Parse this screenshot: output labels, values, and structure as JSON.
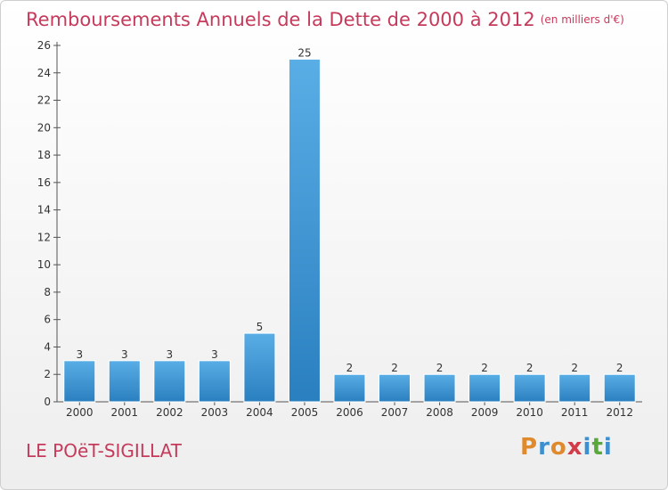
{
  "header": {
    "title": "Remboursements Annuels de la Dette de 2000 à 2012",
    "subtitle": "(en milliers d'€)"
  },
  "footer": {
    "commune": "LE POëT-SIGILLAT",
    "logo_text": "Proxiti"
  },
  "colors": {
    "title": "#c63a5b",
    "bar_top": "#5aaee6",
    "bar_bottom": "#2a7fbf",
    "logo": [
      "#e08a2e",
      "#3c8fd0",
      "#e08a2e",
      "#d23b4a",
      "#3c8fd0",
      "#5aa83c",
      "#3c8fd0"
    ]
  },
  "chart_data": {
    "type": "bar",
    "title": "Remboursements Annuels de la Dette de 2000 à 2012",
    "subtitle": "(en milliers d'€)",
    "xlabel": "",
    "ylabel": "",
    "categories": [
      "2000",
      "2001",
      "2002",
      "2003",
      "2004",
      "2005",
      "2006",
      "2007",
      "2008",
      "2009",
      "2010",
      "2011",
      "2012"
    ],
    "values": [
      3,
      3,
      3,
      3,
      5,
      25,
      2,
      2,
      2,
      2,
      2,
      2,
      2
    ],
    "ylim": [
      0,
      26
    ],
    "yticks": [
      0,
      2,
      4,
      6,
      8,
      10,
      12,
      14,
      16,
      18,
      20,
      22,
      24,
      26
    ],
    "grid": false,
    "legend": "none"
  }
}
